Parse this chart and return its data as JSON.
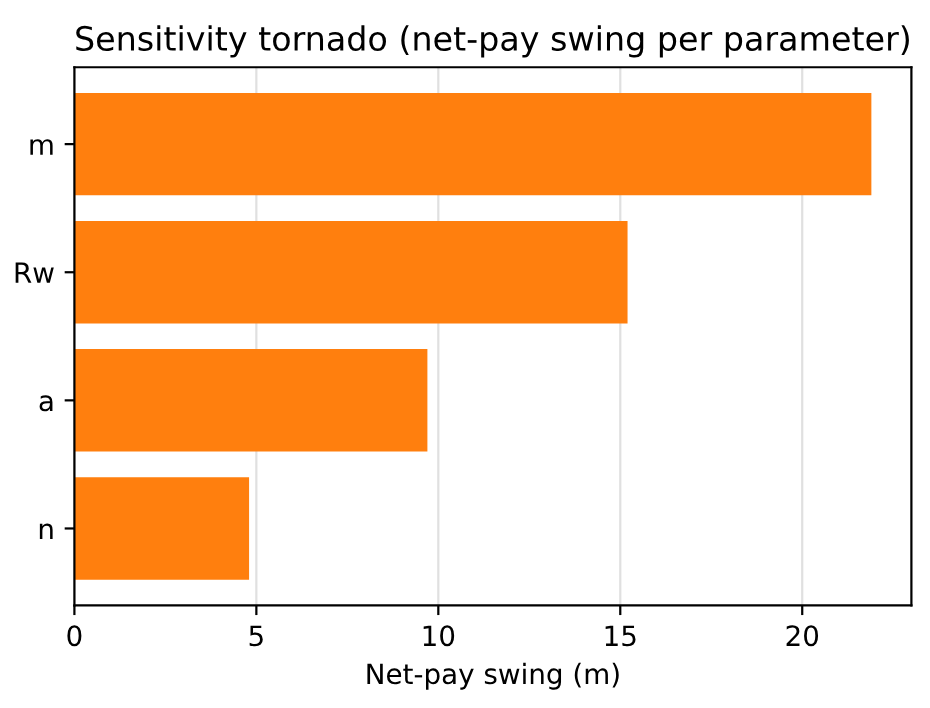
{
  "chart_data": {
    "type": "bar",
    "orientation": "horizontal",
    "title": "Sensitivity tornado (net-pay swing per parameter)",
    "xlabel": "Net-pay swing (m)",
    "categories": [
      "m",
      "Rw",
      "a",
      "n"
    ],
    "values": [
      21.9,
      15.2,
      9.7,
      4.8
    ],
    "color": "#ff7f0e",
    "xlim": [
      0,
      23
    ],
    "xticks": [
      0,
      5,
      10,
      15,
      20
    ],
    "grid": "x",
    "legend": false
  }
}
